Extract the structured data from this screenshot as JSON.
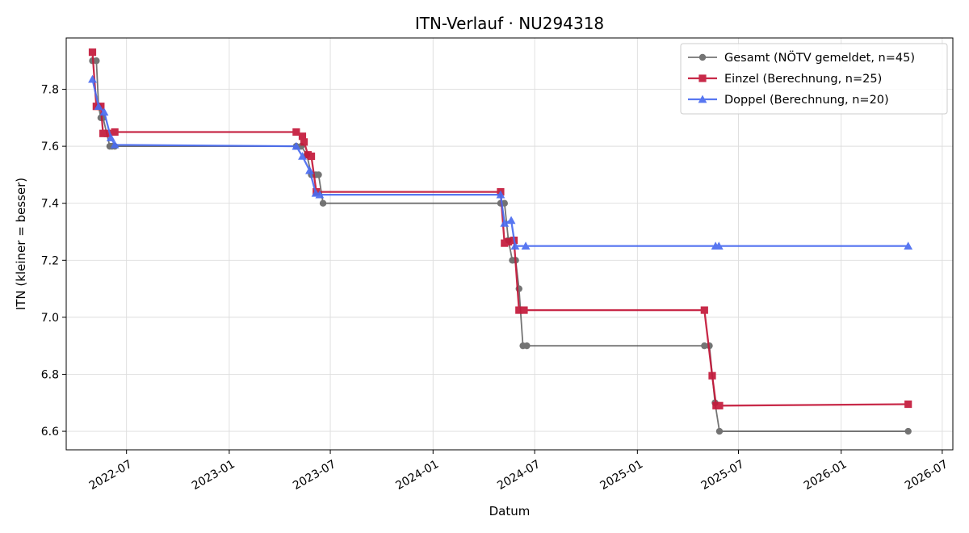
{
  "chart_data": {
    "type": "line",
    "title": "ITN-Verlauf · NU294318",
    "xlabel": "Datum",
    "ylabel": "ITN  (kleiner = besser)",
    "x_axis": "date",
    "xlim": [
      "2022-03-15",
      "2026-07-20"
    ],
    "ylim": [
      6.535,
      7.98
    ],
    "x_ticks": [
      "2022-07",
      "2023-01",
      "2023-07",
      "2024-01",
      "2024-07",
      "2025-01",
      "2025-07",
      "2026-01",
      "2026-07"
    ],
    "y_ticks": [
      6.6,
      6.8,
      7.0,
      7.2,
      7.4,
      7.6,
      7.8
    ],
    "grid": true,
    "legend_position": "top-right",
    "series": [
      {
        "name": "Gesamt (NÖTV gemeldet, n=45)",
        "color": "#404040",
        "marker": "circle",
        "points": [
          [
            "2022-05-01",
            7.9
          ],
          [
            "2022-05-08",
            7.9
          ],
          [
            "2022-05-12",
            7.74
          ],
          [
            "2022-05-16",
            7.7
          ],
          [
            "2022-05-20",
            7.7
          ],
          [
            "2022-06-01",
            7.6
          ],
          [
            "2022-06-05",
            7.6
          ],
          [
            "2022-06-10",
            7.6
          ],
          [
            "2023-05-01",
            7.6
          ],
          [
            "2023-05-10",
            7.6
          ],
          [
            "2023-05-20",
            7.57
          ],
          [
            "2023-05-28",
            7.5
          ],
          [
            "2023-06-05",
            7.5
          ],
          [
            "2023-06-10",
            7.5
          ],
          [
            "2023-06-18",
            7.4
          ],
          [
            "2024-05-01",
            7.4
          ],
          [
            "2024-05-08",
            7.4
          ],
          [
            "2024-05-15",
            7.27
          ],
          [
            "2024-05-22",
            7.2
          ],
          [
            "2024-05-28",
            7.2
          ],
          [
            "2024-06-03",
            7.1
          ],
          [
            "2024-06-10",
            6.9
          ],
          [
            "2024-06-17",
            6.9
          ],
          [
            "2025-05-01",
            6.9
          ],
          [
            "2025-05-10",
            6.9
          ],
          [
            "2025-05-20",
            6.7
          ],
          [
            "2025-05-28",
            6.6
          ],
          [
            "2026-05-01",
            6.6
          ]
        ]
      },
      {
        "name": "Einzel (Berechnung, n=25)",
        "color": "#c4183a",
        "marker": "square",
        "points": [
          [
            "2022-05-01",
            7.93
          ],
          [
            "2022-05-08",
            7.74
          ],
          [
            "2022-05-16",
            7.74
          ],
          [
            "2022-05-20",
            7.645
          ],
          [
            "2022-05-28",
            7.645
          ],
          [
            "2022-06-10",
            7.65
          ],
          [
            "2023-05-01",
            7.65
          ],
          [
            "2023-05-12",
            7.635
          ],
          [
            "2023-05-15",
            7.615
          ],
          [
            "2023-05-22",
            7.57
          ],
          [
            "2023-05-28",
            7.565
          ],
          [
            "2023-06-06",
            7.44
          ],
          [
            "2024-05-01",
            7.44
          ],
          [
            "2024-05-08",
            7.26
          ],
          [
            "2024-05-15",
            7.265
          ],
          [
            "2024-05-25",
            7.27
          ],
          [
            "2024-06-03",
            7.025
          ],
          [
            "2024-06-12",
            7.025
          ],
          [
            "2025-05-01",
            7.025
          ],
          [
            "2025-05-15",
            6.795
          ],
          [
            "2025-05-22",
            6.69
          ],
          [
            "2025-05-28",
            6.69
          ],
          [
            "2026-05-01",
            6.695
          ]
        ]
      },
      {
        "name": "Doppel (Berechnung, n=20)",
        "color": "#4a6cf0",
        "marker": "triangle",
        "points": [
          [
            "2022-05-01",
            7.835
          ],
          [
            "2022-05-12",
            7.74
          ],
          [
            "2022-05-22",
            7.72
          ],
          [
            "2022-06-03",
            7.63
          ],
          [
            "2022-06-10",
            7.605
          ],
          [
            "2023-05-01",
            7.6
          ],
          [
            "2023-05-12",
            7.565
          ],
          [
            "2023-05-25",
            7.515
          ],
          [
            "2023-06-05",
            7.435
          ],
          [
            "2023-06-12",
            7.43
          ],
          [
            "2024-05-01",
            7.43
          ],
          [
            "2024-05-08",
            7.33
          ],
          [
            "2024-05-20",
            7.34
          ],
          [
            "2024-05-27",
            7.25
          ],
          [
            "2024-06-15",
            7.25
          ],
          [
            "2025-05-21",
            7.25
          ],
          [
            "2025-05-27",
            7.25
          ],
          [
            "2026-05-01",
            7.25
          ]
        ]
      }
    ]
  }
}
